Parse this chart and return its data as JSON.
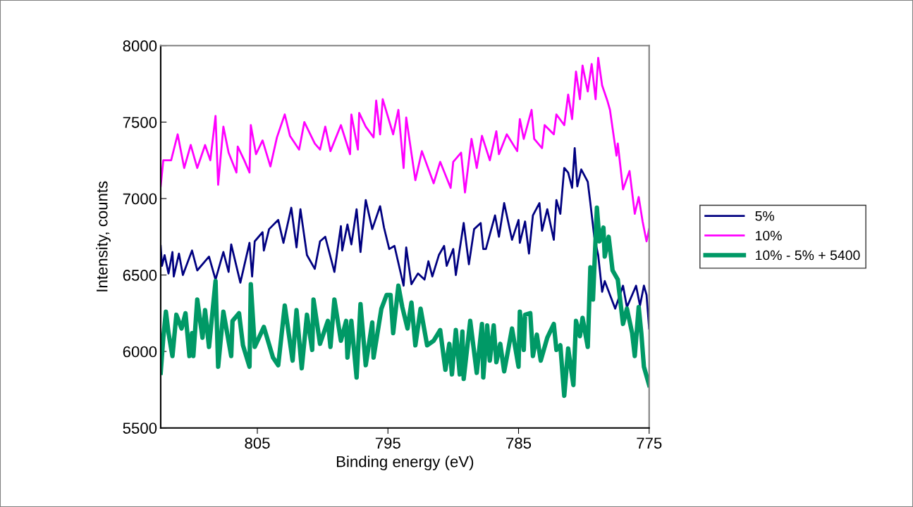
{
  "chart_data": {
    "type": "line",
    "xlabel": "Binding energy (eV)",
    "ylabel": "Intensity, counts",
    "xlim": [
      812.4,
      775
    ],
    "xticks": [
      805,
      795,
      785,
      775
    ],
    "ylim": [
      5500,
      8000
    ],
    "yticks": [
      5500,
      6000,
      6500,
      7000,
      7500,
      8000
    ],
    "grid": false,
    "legend": "right",
    "series": [
      {
        "name": "5%",
        "color": "#000080",
        "x": [
          812.4,
          812.3,
          812.1,
          811.8,
          811.5,
          811.4,
          811.0,
          810.7,
          810.0,
          809.6,
          808.7,
          808.2,
          807.6,
          807.2,
          807.0,
          806.3,
          805.6,
          805.4,
          805.2,
          804.6,
          804.5,
          804.1,
          803.4,
          803.0,
          802.4,
          802.0,
          801.7,
          801.2,
          800.6,
          800.2,
          799.8,
          799.1,
          798.6,
          798.5,
          798.1,
          797.8,
          797.4,
          797.1,
          796.7,
          796.2,
          795.6,
          795.3,
          794.9,
          794.5,
          793.8,
          793.6,
          793.2,
          792.7,
          792.2,
          791.9,
          791.6,
          791.1,
          790.7,
          790.5,
          790.0,
          789.8,
          789.2,
          788.8,
          788.4,
          787.9,
          787.7,
          787.5,
          786.8,
          786.5,
          786.1,
          785.5,
          785.0,
          784.9,
          784.5,
          784.2,
          783.9,
          783.4,
          783.2,
          782.8,
          782.3,
          782.1,
          781.8,
          781.5,
          781.2,
          780.9,
          780.7,
          780.5,
          780.2,
          779.7,
          779.5,
          779.2,
          778.9,
          778.8,
          778.6,
          778.4,
          778.0,
          777.6,
          777.0,
          776.7,
          776.0,
          775.7,
          775.4,
          775.2,
          775.0
        ],
        "values": [
          6690,
          6560,
          6630,
          6510,
          6650,
          6490,
          6640,
          6500,
          6660,
          6530,
          6620,
          6470,
          6650,
          6520,
          6700,
          6450,
          6710,
          6490,
          6720,
          6780,
          6660,
          6800,
          6860,
          6710,
          6940,
          6680,
          6930,
          6630,
          6540,
          6720,
          6750,
          6520,
          6820,
          6660,
          6830,
          6700,
          6930,
          6650,
          6990,
          6800,
          6950,
          6810,
          6670,
          6690,
          6430,
          6680,
          6440,
          6510,
          6470,
          6590,
          6490,
          6630,
          6690,
          6560,
          6670,
          6500,
          6840,
          6570,
          6800,
          6840,
          6670,
          6670,
          6890,
          6750,
          6970,
          6730,
          6860,
          6710,
          6850,
          6640,
          6890,
          6970,
          6790,
          6930,
          6730,
          6990,
          6900,
          7200,
          7170,
          7070,
          7330,
          7080,
          7190,
          7110,
          6970,
          6750,
          6630,
          6550,
          6390,
          6460,
          6370,
          6280,
          6430,
          6290,
          6430,
          6300,
          6430,
          6370,
          6150
        ]
      },
      {
        "name": "10%",
        "color": "#ff00ff",
        "x": [
          812.4,
          812.2,
          811.6,
          811.1,
          810.6,
          810.1,
          809.6,
          809.0,
          808.6,
          808.2,
          808.0,
          807.6,
          807.2,
          806.6,
          806.5,
          806.0,
          805.6,
          805.5,
          805.1,
          804.6,
          804.0,
          803.5,
          802.9,
          802.5,
          801.8,
          801.4,
          800.6,
          800.2,
          799.8,
          799.4,
          798.6,
          797.9,
          797.8,
          797.3,
          797.2,
          796.7,
          796.1,
          795.9,
          795.6,
          795.4,
          794.6,
          794.2,
          793.8,
          793.6,
          792.9,
          792.4,
          791.5,
          791.0,
          790.2,
          790.0,
          789.4,
          789.1,
          788.6,
          788.2,
          787.8,
          787.2,
          786.7,
          786.5,
          785.9,
          785.1,
          784.9,
          784.6,
          784.0,
          783.8,
          783.2,
          783.0,
          782.3,
          782.1,
          781.5,
          781.2,
          780.9,
          780.6,
          780.3,
          780.1,
          779.7,
          779.4,
          779.1,
          778.9,
          778.6,
          778.2,
          778.0,
          777.5,
          777.4,
          777.0,
          776.5,
          776.1,
          775.8,
          775.5,
          775.2,
          775.0
        ],
        "values": [
          7080,
          7250,
          7250,
          7420,
          7200,
          7350,
          7200,
          7350,
          7250,
          7540,
          7090,
          7470,
          7300,
          7170,
          7340,
          7250,
          7170,
          7480,
          7290,
          7380,
          7210,
          7400,
          7550,
          7410,
          7320,
          7500,
          7360,
          7320,
          7470,
          7310,
          7480,
          7290,
          7550,
          7320,
          7560,
          7470,
          7400,
          7640,
          7420,
          7650,
          7420,
          7580,
          7200,
          7530,
          7120,
          7310,
          7100,
          7240,
          7070,
          7240,
          7300,
          7040,
          7390,
          7200,
          7410,
          7250,
          7440,
          7290,
          7420,
          7310,
          7520,
          7390,
          7580,
          7390,
          7330,
          7480,
          7420,
          7550,
          7480,
          7680,
          7520,
          7830,
          7650,
          7870,
          7700,
          7880,
          7650,
          7920,
          7740,
          7640,
          7580,
          7280,
          7360,
          7060,
          7180,
          6900,
          7010,
          6850,
          6720,
          6800
        ]
      },
      {
        "name": "10% - 5% + 5400",
        "color": "#009966",
        "x": [
          812.4,
          812.2,
          812.0,
          811.8,
          811.5,
          811.2,
          810.8,
          810.5,
          810.2,
          810.0,
          809.9,
          809.6,
          809.2,
          809.0,
          808.7,
          808.2,
          808.0,
          807.6,
          807.0,
          806.9,
          806.4,
          806.1,
          805.6,
          805.5,
          805.2,
          804.5,
          803.8,
          803.4,
          802.9,
          802.3,
          802.0,
          801.6,
          801.2,
          800.8,
          800.7,
          800.2,
          799.6,
          799.4,
          799.1,
          798.6,
          798.2,
          798.1,
          797.8,
          797.4,
          797.1,
          796.7,
          796.2,
          796.1,
          795.5,
          795.1,
          794.8,
          794.6,
          794.2,
          793.9,
          793.5,
          793.2,
          792.9,
          792.5,
          792.0,
          791.5,
          791.0,
          790.6,
          790.3,
          790.1,
          789.8,
          789.5,
          789.3,
          789.2,
          788.7,
          788.2,
          787.8,
          787.7,
          787.4,
          787.2,
          786.9,
          786.7,
          786.4,
          786.1,
          785.9,
          785.5,
          785.0,
          784.9,
          784.6,
          784.5,
          784.1,
          783.9,
          783.6,
          783.3,
          782.8,
          782.3,
          782.1,
          781.8,
          781.5,
          781.2,
          780.8,
          780.6,
          780.3,
          780.1,
          779.7,
          779.5,
          779.3,
          779.0,
          778.8,
          778.5,
          778.4,
          778.1,
          777.8,
          777.4,
          777.0,
          776.7,
          776.3,
          776.1,
          775.8,
          775.6,
          775.4,
          775.1,
          775.0
        ],
        "values": [
          5860,
          6090,
          6260,
          6120,
          5970,
          6240,
          6150,
          6250,
          5970,
          6120,
          5970,
          6340,
          6090,
          6270,
          6030,
          6460,
          5900,
          6260,
          5970,
          6200,
          6250,
          6040,
          5900,
          6440,
          6030,
          6160,
          5960,
          5910,
          6300,
          5940,
          6270,
          5890,
          6240,
          6010,
          6340,
          6050,
          6200,
          6030,
          6340,
          6070,
          6200,
          5960,
          6200,
          5830,
          6310,
          5910,
          6190,
          5960,
          6280,
          6370,
          6370,
          6120,
          6430,
          6290,
          6150,
          6320,
          6040,
          6280,
          6040,
          6070,
          6140,
          5880,
          6050,
          5850,
          6140,
          5850,
          6130,
          5820,
          6200,
          5860,
          6180,
          5830,
          6170,
          5940,
          6170,
          5930,
          6050,
          5870,
          5960,
          6150,
          5900,
          6260,
          6010,
          6240,
          6250,
          5970,
          6110,
          5940,
          6090,
          6180,
          6010,
          6040,
          5710,
          6020,
          5780,
          6200,
          6100,
          6220,
          6030,
          6550,
          6340,
          6940,
          6720,
          6810,
          6620,
          6750,
          6530,
          6470,
          6180,
          6280,
          6120,
          5970,
          6290,
          6120,
          5900,
          5810,
          5780
        ]
      }
    ]
  }
}
